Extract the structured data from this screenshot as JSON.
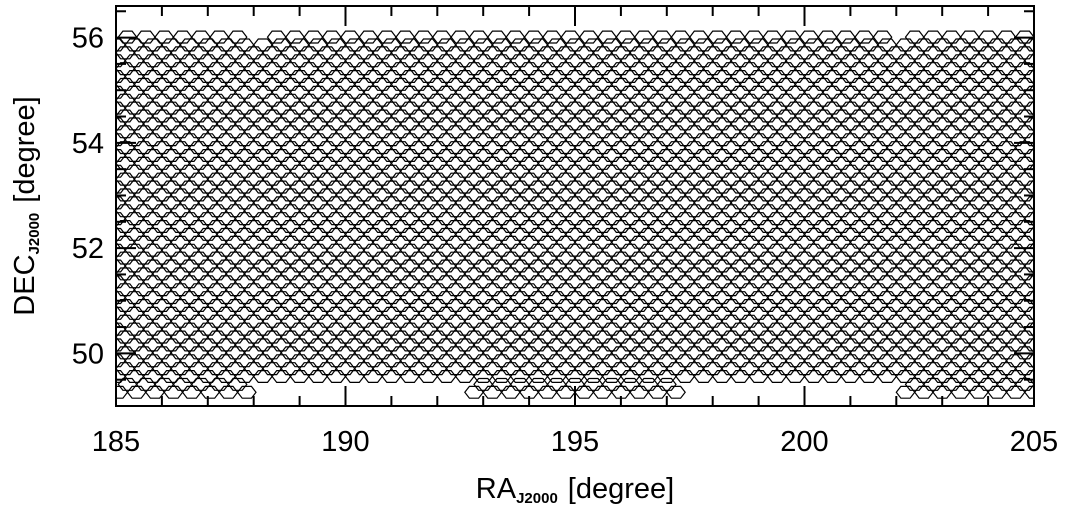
{
  "chart_data": {
    "type": "scatter",
    "title": "",
    "xlabel": {
      "main": "RA",
      "sub": "J2000",
      "unit": "[degree]"
    },
    "ylabel": {
      "main": "DEC",
      "sub": "J2000",
      "unit": "[degree]"
    },
    "xlim": [
      185,
      205
    ],
    "ylim": [
      49.0,
      56.6
    ],
    "x_major_ticks": [
      185,
      190,
      195,
      200,
      205
    ],
    "x_tick_labels": [
      "185",
      "190",
      "195",
      "200",
      "205"
    ],
    "x_minor_step": 1,
    "y_major_ticks": [
      50,
      52,
      54,
      56
    ],
    "y_tick_labels": [
      "50",
      "52",
      "54",
      "56"
    ],
    "y_minor_step": 0.5,
    "grid": false,
    "marker": "hexagon-tiling",
    "tiling": {
      "dec_min": 49.26,
      "dec_max": 56.1,
      "dec_step": 0.15,
      "ra_step": 0.4,
      "ra_offset_alternate_rows": 0.2,
      "coverage": [
        {
          "dec_range": [
            49.26,
            49.5
          ],
          "ra_ranges": [
            [
              185.05,
              188.0
            ],
            [
              192.8,
              197.2
            ],
            [
              202.2,
              205.0
            ]
          ]
        },
        {
          "dec_range": [
            49.5,
            56.0
          ],
          "ra_ranges": [
            [
              185.0,
              205.0
            ]
          ]
        },
        {
          "dec_range": [
            56.0,
            56.1
          ],
          "ra_ranges": [
            [
              185.05,
              188.0
            ],
            [
              188.3,
              202.0
            ],
            [
              202.2,
              205.0
            ]
          ]
        }
      ]
    }
  }
}
